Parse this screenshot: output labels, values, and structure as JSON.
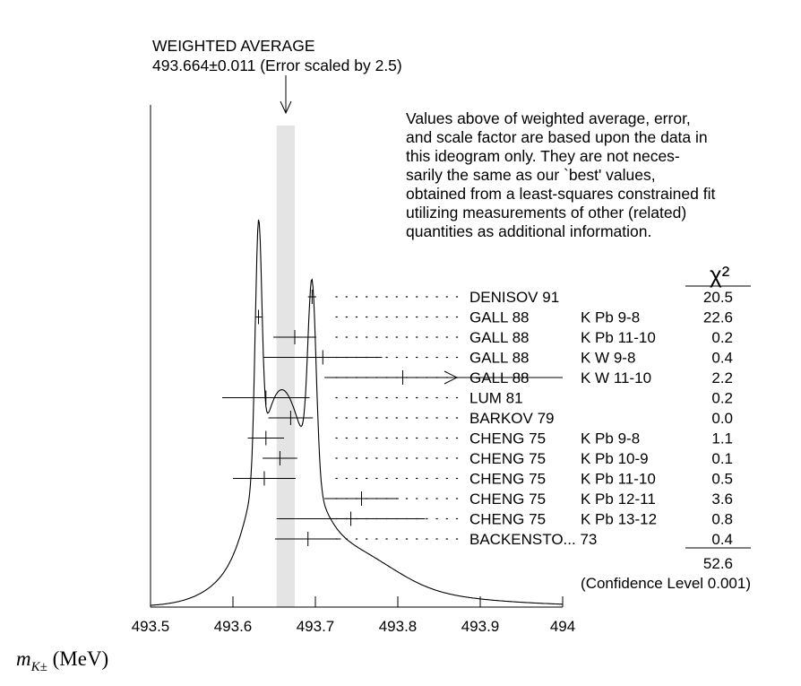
{
  "weighted_average": {
    "title": "WEIGHTED AVERAGE",
    "value_text": "493.664±0.011 (Error scaled by 2.5)"
  },
  "note_lines": [
    "Values above of weighted average, error,",
    "and scale factor are based upon the data in",
    "this ideogram only.  They are not neces-",
    "sarily the same as our `best' values,",
    "obtained from a least-squares constrained fit",
    "utilizing measurements of other (related)",
    "quantities as additional information."
  ],
  "chi2_header": "χ²",
  "chi2_total": "52.6",
  "confidence_level": "(Confidence Level  0.001)",
  "x_axis_label_main": "m",
  "x_axis_label_sub": "K±",
  "x_axis_label_unit": " (MeV)",
  "colors": {
    "band": "#e4e4e4",
    "ink": "#000000"
  },
  "chart_data": {
    "type": "ideogram",
    "xlim": [
      493.5,
      494.0
    ],
    "x_ticks": [
      493.5,
      493.6,
      493.7,
      493.8,
      493.9,
      494.0
    ],
    "x_tick_labels": [
      "493.5",
      "493.6",
      "493.7",
      "493.8",
      "493.9",
      "494"
    ],
    "weighted_average": {
      "value": 493.664,
      "error": 0.011
    },
    "measurements": [
      {
        "label": "DENISOV 91",
        "comment": "",
        "value": 493.696,
        "low": 493.691,
        "high": 493.701,
        "chi2": "20.5"
      },
      {
        "label": "GALL 88",
        "comment": "K Pb  9-8",
        "value": 493.631,
        "low": 493.627,
        "high": 493.635,
        "chi2": "22.6"
      },
      {
        "label": "GALL 88",
        "comment": "K Pb  11-10",
        "value": 493.675,
        "low": 493.649,
        "high": 493.701,
        "chi2": "0.2"
      },
      {
        "label": "GALL 88",
        "comment": "K W   9-8",
        "value": 493.709,
        "low": 493.637,
        "high": 493.781,
        "chi2": "0.4"
      },
      {
        "label": "GALL 88",
        "comment": "K W   11-10",
        "value": 493.806,
        "low": 493.711,
        "high": 494.0,
        "chi2": "2.2",
        "arrow": true
      },
      {
        "label": "LUM  81",
        "comment": "",
        "value": 493.64,
        "low": 493.587,
        "high": 493.693,
        "chi2": "0.2"
      },
      {
        "label": "BARKOV 79",
        "comment": "",
        "value": 493.67,
        "low": 493.643,
        "high": 493.697,
        "chi2": "0.0"
      },
      {
        "label": "CHENG 75",
        "comment": "K Pb  9-8",
        "value": 493.64,
        "low": 493.618,
        "high": 493.662,
        "chi2": "1.1"
      },
      {
        "label": "CHENG 75",
        "comment": "K Pb  10-9",
        "value": 493.657,
        "low": 493.636,
        "high": 493.678,
        "chi2": "0.1"
      },
      {
        "label": "CHENG 75",
        "comment": "K Pb  11-10",
        "value": 493.638,
        "low": 493.6,
        "high": 493.676,
        "chi2": "0.5"
      },
      {
        "label": "CHENG 75",
        "comment": "K Pb  12-11",
        "value": 493.756,
        "low": 493.711,
        "high": 493.801,
        "chi2": "3.6"
      },
      {
        "label": "CHENG 75",
        "comment": "K Pb  13-12",
        "value": 493.743,
        "low": 493.653,
        "high": 493.833,
        "chi2": "0.8"
      },
      {
        "label": "BACKENSTO... 73",
        "comment": "",
        "value": 493.691,
        "low": 493.651,
        "high": 493.731,
        "chi2": "0.4"
      }
    ]
  }
}
